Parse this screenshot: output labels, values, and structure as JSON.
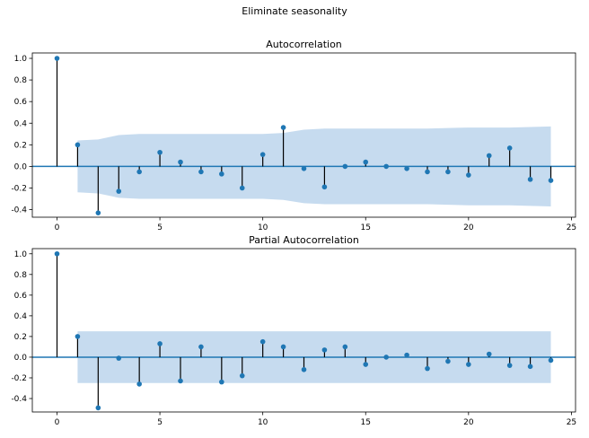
{
  "figure": {
    "suptitle": "Eliminate seasonality"
  },
  "colors": {
    "marker": "#1f77b4",
    "band": "#c6dbef",
    "stem": "#000000",
    "zero_line": "#1f77b4"
  },
  "chart_data": [
    {
      "type": "stem",
      "title": "Autocorrelation",
      "xlim": [
        -1.2,
        25.2
      ],
      "ylim": [
        -0.47,
        1.05
      ],
      "xticks": [
        0,
        5,
        10,
        15,
        20,
        25
      ],
      "yticks": [
        -0.4,
        -0.2,
        0.0,
        0.2,
        0.4,
        0.6,
        0.8,
        1.0
      ],
      "lags": [
        0,
        1,
        2,
        3,
        4,
        5,
        6,
        7,
        8,
        9,
        10,
        11,
        12,
        13,
        14,
        15,
        16,
        17,
        18,
        19,
        20,
        21,
        22,
        23,
        24
      ],
      "values": [
        1.0,
        0.2,
        -0.43,
        -0.23,
        -0.05,
        0.13,
        0.04,
        -0.05,
        -0.07,
        -0.2,
        0.11,
        0.36,
        -0.02,
        -0.19,
        0.0,
        0.04,
        0.0,
        -0.02,
        -0.05,
        -0.05,
        -0.08,
        0.1,
        0.17,
        -0.12,
        -0.13
      ],
      "confint": {
        "lags": [
          1,
          2,
          3,
          4,
          5,
          6,
          7,
          8,
          9,
          10,
          11,
          12,
          13,
          14,
          15,
          16,
          17,
          18,
          19,
          20,
          21,
          22,
          23,
          24
        ],
        "upper": [
          0.24,
          0.25,
          0.29,
          0.3,
          0.3,
          0.3,
          0.3,
          0.3,
          0.3,
          0.3,
          0.31,
          0.34,
          0.35,
          0.35,
          0.35,
          0.35,
          0.35,
          0.35,
          0.355,
          0.36,
          0.36,
          0.36,
          0.365,
          0.37
        ]
      }
    },
    {
      "type": "stem",
      "title": "Partial Autocorrelation",
      "xlim": [
        -1.2,
        25.2
      ],
      "ylim": [
        -0.53,
        1.05
      ],
      "xticks": [
        0,
        5,
        10,
        15,
        20,
        25
      ],
      "yticks": [
        -0.4,
        -0.2,
        0.0,
        0.2,
        0.4,
        0.6,
        0.8,
        1.0
      ],
      "lags": [
        0,
        1,
        2,
        3,
        4,
        5,
        6,
        7,
        8,
        9,
        10,
        11,
        12,
        13,
        14,
        15,
        16,
        17,
        18,
        19,
        20,
        21,
        22,
        23,
        24
      ],
      "values": [
        1.0,
        0.2,
        -0.49,
        -0.01,
        -0.26,
        0.13,
        -0.23,
        0.1,
        -0.24,
        -0.18,
        0.15,
        0.1,
        -0.12,
        0.07,
        0.1,
        -0.07,
        0.0,
        0.02,
        -0.11,
        -0.04,
        -0.07,
        0.03,
        -0.08,
        -0.09,
        -0.03
      ],
      "confint": {
        "lags": [
          1,
          24
        ],
        "upper": [
          0.25,
          0.25
        ]
      }
    }
  ]
}
